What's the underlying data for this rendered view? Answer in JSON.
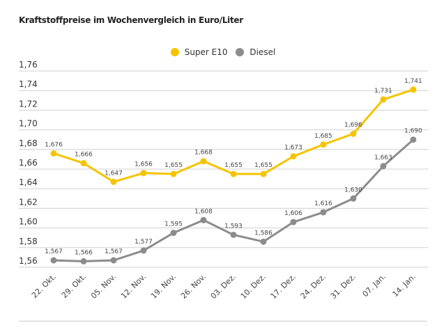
{
  "chart_data": {
    "type": "line",
    "title": "Kraftstoffpreise im Wochenvergleich in Euro/Liter",
    "xlabel": "",
    "ylabel": "",
    "ylim": [
      1.56,
      1.76
    ],
    "yticks": [
      "1,56",
      "1,58",
      "1,60",
      "1,62",
      "1,64",
      "1,66",
      "1,68",
      "1,70",
      "1,72",
      "1,74",
      "1,76"
    ],
    "grid": true,
    "legend_position": "top-center",
    "categories": [
      "22. Okt.",
      "29. Okt.",
      "05. Nov.",
      "12. Nov.",
      "19. Nov.",
      "26. Nov.",
      "03. Dez.",
      "10. Dez.",
      "17. Dez.",
      "24. Dez.",
      "31. Dez.",
      "07. Jan.",
      "14. Jan."
    ],
    "series": [
      {
        "name": "Super E10",
        "color": "#f5c400",
        "values": [
          1.676,
          1.666,
          1.647,
          1.656,
          1.655,
          1.668,
          1.655,
          1.655,
          1.673,
          1.685,
          1.696,
          1.731,
          1.741
        ],
        "labels": [
          "1,676",
          "1,666",
          "1,647",
          "1,656",
          "1,655",
          "1,668",
          "1,655",
          "1,655",
          "1,673",
          "1,685",
          "1,696",
          "1,731",
          "1,741"
        ]
      },
      {
        "name": "Diesel",
        "color": "#8c8c8c",
        "values": [
          1.567,
          1.566,
          1.567,
          1.577,
          1.595,
          1.608,
          1.593,
          1.586,
          1.606,
          1.616,
          1.63,
          1.663,
          1.69
        ],
        "labels": [
          "1,567",
          "1,566",
          "1,567",
          "1,577",
          "1,595",
          "1,608",
          "1,593",
          "1,586",
          "1,606",
          "1,616",
          "1,630",
          "1,663",
          "1,690"
        ]
      }
    ]
  }
}
